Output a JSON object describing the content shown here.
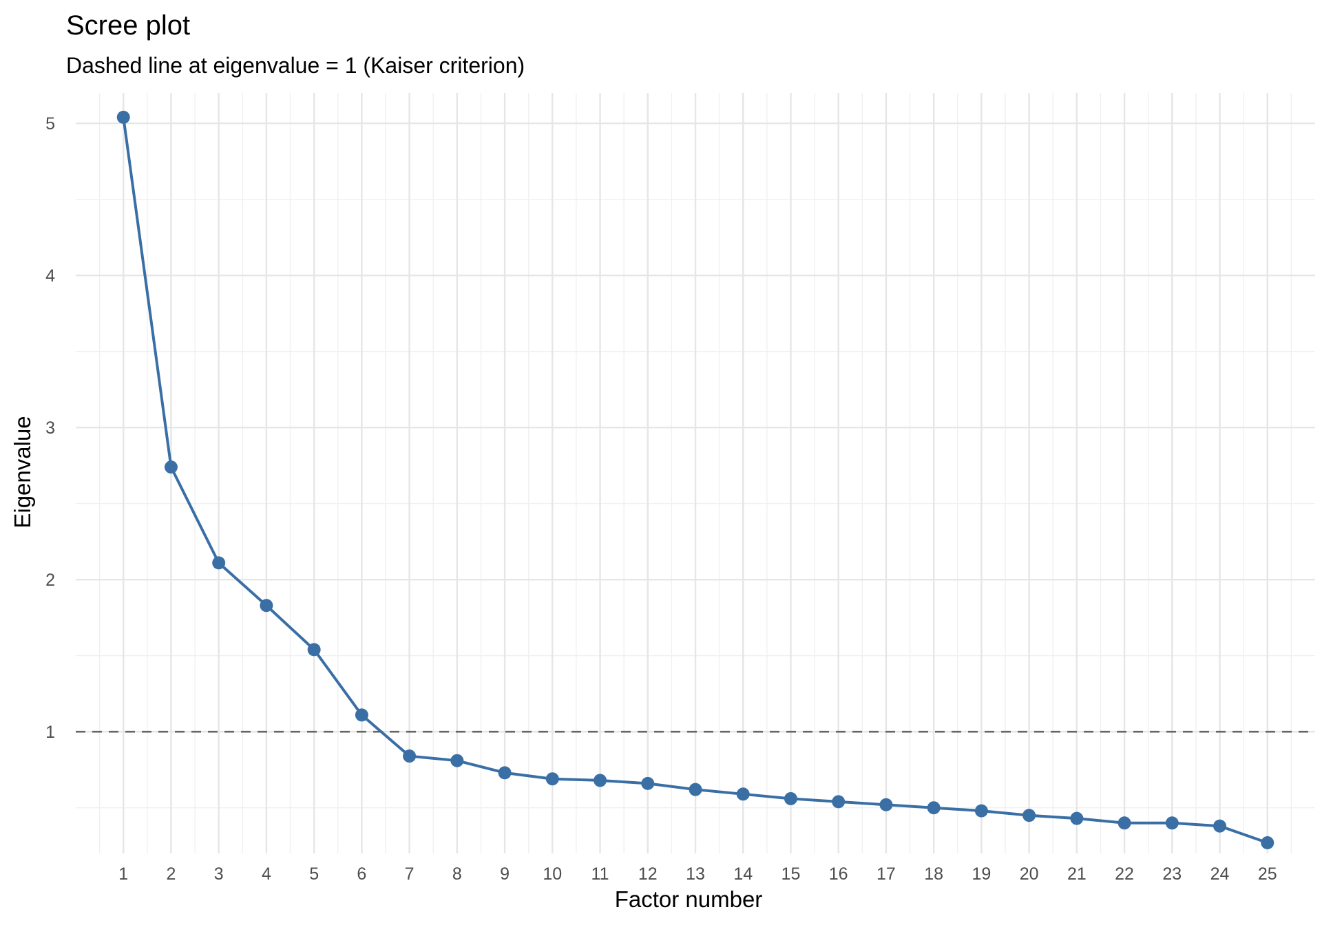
{
  "chart_data": {
    "type": "line",
    "title": "Scree plot",
    "subtitle": "Dashed line at eigenvalue = 1 (Kaiser criterion)",
    "xlabel": "Factor number",
    "ylabel": "Eigenvalue",
    "x": [
      1,
      2,
      3,
      4,
      5,
      6,
      7,
      8,
      9,
      10,
      11,
      12,
      13,
      14,
      15,
      16,
      17,
      18,
      19,
      20,
      21,
      22,
      23,
      24,
      25
    ],
    "values": [
      5.04,
      2.74,
      2.11,
      1.83,
      1.54,
      1.11,
      0.84,
      0.81,
      0.73,
      0.69,
      0.68,
      0.66,
      0.62,
      0.59,
      0.56,
      0.54,
      0.52,
      0.5,
      0.48,
      0.45,
      0.43,
      0.4,
      0.4,
      0.38,
      0.27
    ],
    "xlim": [
      0,
      26
    ],
    "ylim": [
      0.2,
      5.2
    ],
    "x_ticks": [
      "1",
      "2",
      "3",
      "4",
      "5",
      "6",
      "7",
      "8",
      "9",
      "10",
      "11",
      "12",
      "13",
      "14",
      "15",
      "16",
      "17",
      "18",
      "19",
      "20",
      "21",
      "22",
      "23",
      "24",
      "25"
    ],
    "y_ticks": [
      "1",
      "2",
      "3",
      "4",
      "5"
    ],
    "reference_line": {
      "y": 1,
      "style": "dashed",
      "color": "#666666"
    },
    "series_color": "#3a6fa5",
    "grid": true,
    "legend": "none"
  }
}
